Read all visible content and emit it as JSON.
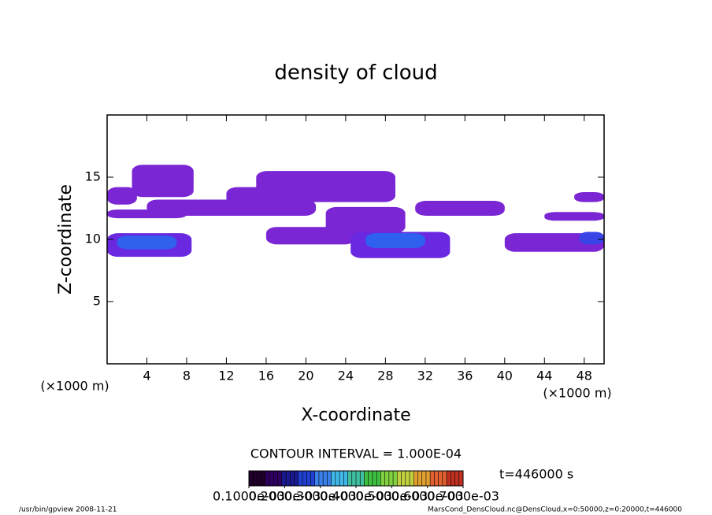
{
  "chart_data": {
    "type": "contour",
    "title": "density of cloud",
    "xlabel": "X-coordinate",
    "ylabel": "Z-coordinate",
    "xunit": "(×1000 m)",
    "xlim": [
      0,
      50
    ],
    "ylim": [
      0,
      20
    ],
    "xticks": [
      4,
      8,
      12,
      16,
      20,
      24,
      28,
      32,
      36,
      40,
      44,
      48
    ],
    "yticks": [
      5,
      10,
      15
    ],
    "contour_interval": "CONTOUR INTERVAL = 1.000E-04",
    "time_label": "t=446000 s",
    "footer_left": "/usr/bin/gpview  2008-11-21",
    "footer_right": "MarsCond_DensCloud.nc@DensCloud,x=0:50000,z=0:20000,t=446000",
    "regions": [
      {
        "x0": 0,
        "x1": 3,
        "z0": 12.8,
        "z1": 14.2,
        "value": 0.0001,
        "color": "#7a26d4"
      },
      {
        "x0": 2.5,
        "x1": 8.7,
        "z0": 13.4,
        "z1": 16,
        "value": 0.0001,
        "color": "#7a26d4"
      },
      {
        "x0": 0,
        "x1": 8,
        "z0": 11.7,
        "z1": 12.4,
        "value": 0.0001,
        "color": "#7a26d4"
      },
      {
        "x0": 4,
        "x1": 21,
        "z0": 11.9,
        "z1": 13.2,
        "value": 0.0001,
        "color": "#7a26d4"
      },
      {
        "x0": 12,
        "x1": 17,
        "z0": 12.2,
        "z1": 14.2,
        "value": 0.0001,
        "color": "#7a26d4"
      },
      {
        "x0": 15,
        "x1": 29,
        "z0": 13,
        "z1": 15.5,
        "value": 0.0001,
        "color": "#7a26d4"
      },
      {
        "x0": 0,
        "x1": 8.5,
        "z0": 8.6,
        "z1": 10.5,
        "value": 0.0001,
        "color": "#6a28e0"
      },
      {
        "x0": 1,
        "x1": 7,
        "z0": 9.2,
        "z1": 10.3,
        "value": 0.0003,
        "color": "#3060ee"
      },
      {
        "x0": 16,
        "x1": 25,
        "z0": 9.6,
        "z1": 11,
        "value": 0.0001,
        "color": "#7a26d4"
      },
      {
        "x0": 22,
        "x1": 30,
        "z0": 10.5,
        "z1": 12.6,
        "value": 0.0001,
        "color": "#7a26d4"
      },
      {
        "x0": 24.5,
        "x1": 34.5,
        "z0": 8.5,
        "z1": 10.6,
        "value": 0.0001,
        "color": "#6a28e0"
      },
      {
        "x0": 26,
        "x1": 32,
        "z0": 9.3,
        "z1": 10.5,
        "value": 0.0003,
        "color": "#3060ee"
      },
      {
        "x0": 31,
        "x1": 40,
        "z0": 11.9,
        "z1": 13.1,
        "value": 0.0001,
        "color": "#7a26d4"
      },
      {
        "x0": 40,
        "x1": 50,
        "z0": 9,
        "z1": 10.5,
        "value": 0.0001,
        "color": "#7a26d4"
      },
      {
        "x0": 44,
        "x1": 50,
        "z0": 11.5,
        "z1": 12.2,
        "value": 0.0001,
        "color": "#7a26d4"
      },
      {
        "x0": 47,
        "x1": 50,
        "z0": 13,
        "z1": 13.8,
        "value": 0.0001,
        "color": "#7a26d4"
      },
      {
        "x0": 47.5,
        "x1": 50,
        "z0": 9.6,
        "z1": 10.6,
        "value": 0.0002,
        "color": "#3a44e6"
      }
    ],
    "colorbar": {
      "lim": [
        0.0001,
        0.0007
      ],
      "colors": [
        "#20002a",
        "#300060",
        "#1a1a90",
        "#2040d0",
        "#3a80e8",
        "#40b8e8",
        "#40c0a0",
        "#40c040",
        "#80d040",
        "#c0d040",
        "#e0a030",
        "#e06030",
        "#c03020"
      ],
      "ticks": [
        {
          "value": 0.0001,
          "label": "0.1000e-03"
        },
        {
          "value": 0.0002,
          "label": "0.2000e-03"
        },
        {
          "value": 0.0003,
          "label": "0.3000e-03"
        },
        {
          "value": 0.0004,
          "label": "0.4000e-03"
        },
        {
          "value": 0.0005,
          "label": "0.5000e-03"
        },
        {
          "value": 0.0006,
          "label": "0.6000e-03"
        },
        {
          "value": 0.0007,
          "label": "0.7000e-03"
        }
      ]
    }
  }
}
